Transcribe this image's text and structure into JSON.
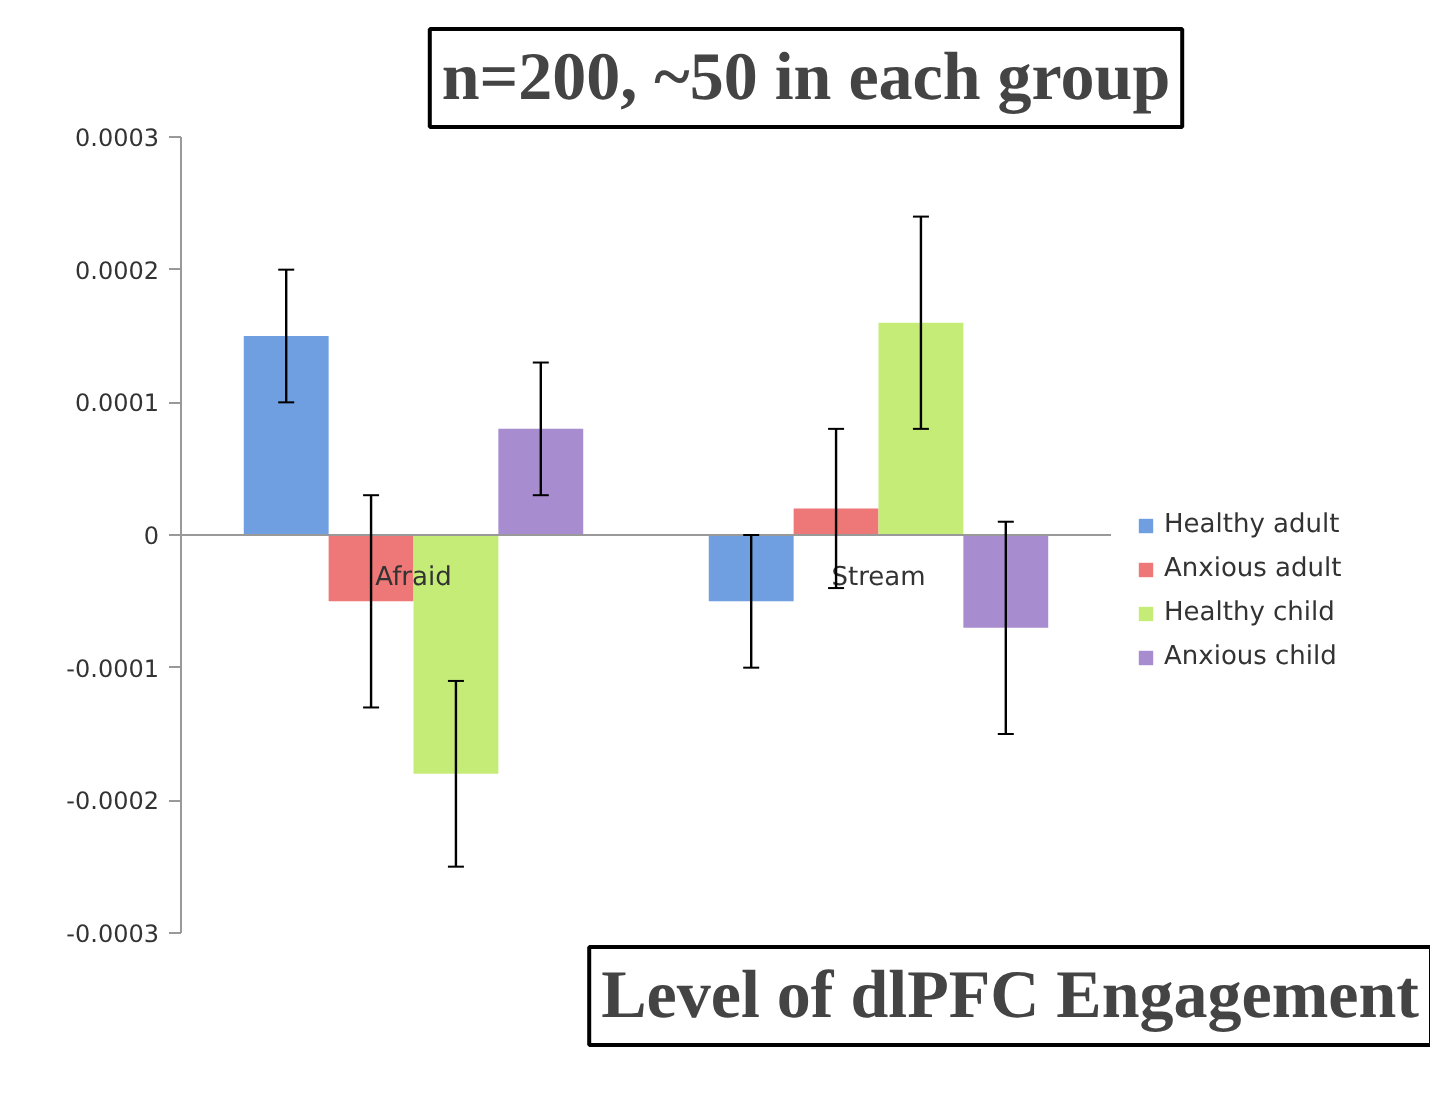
{
  "chart_data": {
    "type": "bar",
    "title": "n=200, ~50 in each group",
    "annotations": [
      "Level of dlPFC Engagement"
    ],
    "categories": [
      "Afraid",
      "Stream"
    ],
    "ylim": [
      -0.0003,
      0.0003
    ],
    "yticks": [
      -0.0003,
      -0.0002,
      -0.0001,
      0,
      0.0001,
      0.0002,
      0.0003
    ],
    "legend": "right",
    "series": [
      {
        "name": "Healthy adult",
        "color": "#6f9fe0",
        "values": [
          0.00015,
          -5e-05
        ],
        "errors": [
          5e-05,
          5e-05
        ]
      },
      {
        "name": "Anxious adult",
        "color": "#ee7777",
        "values": [
          -5e-05,
          2e-05
        ],
        "errors": [
          8e-05,
          6e-05
        ]
      },
      {
        "name": "Healthy child",
        "color": "#c6ec78",
        "values": [
          -0.00018,
          0.00016
        ],
        "errors": [
          7e-05,
          [
            8e-05,
            0.00024
          ]
        ]
      },
      {
        "name": "Anxious child",
        "color": "#a88cd0",
        "values": [
          8e-05,
          -7e-05
        ],
        "errors": [
          5e-05,
          8e-05
        ]
      }
    ]
  }
}
